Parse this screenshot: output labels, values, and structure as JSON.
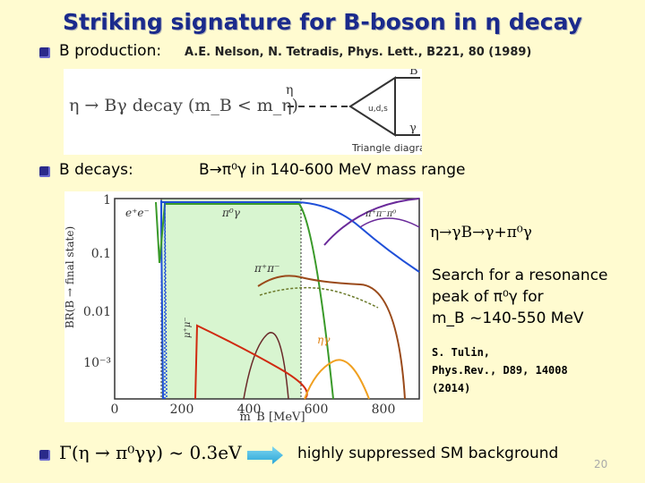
{
  "title": "Striking signature for B-boson in η decay",
  "production": {
    "label": "B production:",
    "reference": "A.E. Nelson, N. Tetradis, Phys. Lett., B221, 80 (1989)",
    "equation": "η → Bγ decay (m_B < m_η)",
    "diagram_caption": "Triangle diagram",
    "diagram_labels": {
      "eta": "η",
      "B": "B",
      "loop": "u,d,s",
      "gamma": "γ"
    }
  },
  "decays": {
    "label": "B decays:",
    "text": "B→π⁰γ in 140-600 MeV mass range"
  },
  "plot": {
    "ylabel": "BR(B → final state)",
    "xlabel": "m_B [MeV]",
    "xticks": [
      "0",
      "200",
      "400",
      "600",
      "800"
    ],
    "yticks": [
      "1",
      "0.1",
      "0.01",
      "10⁻³"
    ],
    "annotations": [
      "e⁺e⁻",
      "π⁰γ",
      "π⁺π⁻π⁰",
      "π⁺π⁻",
      "μ⁺μ⁻",
      "ηγ"
    ]
  },
  "right_text": {
    "chain": "η→γB→γ+π⁰γ",
    "search_lines": [
      "Search for a resonance",
      "peak of π⁰γ  for",
      "m_B ~140-550 MeV"
    ],
    "citation_lines": [
      "S. Tulin,",
      "Phys.Rev., D89, 14008",
      "(2014)"
    ]
  },
  "bottom": {
    "formula": "Γ(η → π⁰γγ) ~ 0.3eV",
    "conclusion": "highly suppressed SM background",
    "page_number": "20"
  },
  "colors": {
    "title": "#1a2a8c",
    "background": "#fffbd0",
    "blue": "#1f4fd8",
    "green": "#3a9a2a",
    "purple": "#6a2a9a",
    "brown": "#9a4a1a",
    "red": "#d02a10",
    "orange": "#f0a020",
    "shade": "#d8f5d0"
  }
}
